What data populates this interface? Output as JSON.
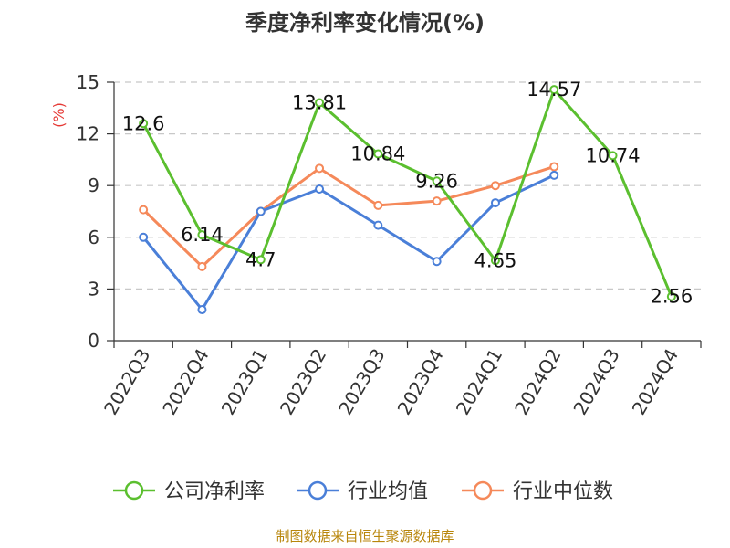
{
  "chart_data": {
    "type": "line",
    "title": "季度净利率变化情况(%)",
    "ylabel": "(%)",
    "xlabel": "",
    "ylim": [
      0,
      15
    ],
    "yticks": [
      0,
      3,
      6,
      9,
      12,
      15
    ],
    "categories": [
      "2022Q3",
      "2022Q4",
      "2023Q1",
      "2023Q2",
      "2023Q3",
      "2023Q4",
      "2024Q1",
      "2024Q2",
      "2024Q3",
      "2024Q4"
    ],
    "grid": true,
    "legend_position": "bottom",
    "series": [
      {
        "name": "公司净利率",
        "color": "#5bbf2f",
        "values": [
          12.6,
          6.14,
          4.7,
          13.81,
          10.84,
          9.26,
          4.65,
          14.57,
          10.74,
          2.56
        ],
        "labels": [
          "12.6",
          "6.14",
          "4.7",
          "13.81",
          "10.84",
          "9.26",
          "4.65",
          "14.57",
          "10.74",
          "2.56"
        ]
      },
      {
        "name": "行业均值",
        "color": "#4a7fd8",
        "values": [
          6.0,
          1.8,
          7.5,
          8.8,
          6.7,
          4.6,
          8.0,
          9.6,
          null,
          null
        ]
      },
      {
        "name": "行业中位数",
        "color": "#f5895a",
        "values": [
          7.6,
          4.3,
          7.5,
          10.0,
          7.85,
          8.1,
          9.0,
          10.1,
          null,
          null
        ]
      }
    ]
  },
  "source": "制图数据来自恒生聚源数据库"
}
